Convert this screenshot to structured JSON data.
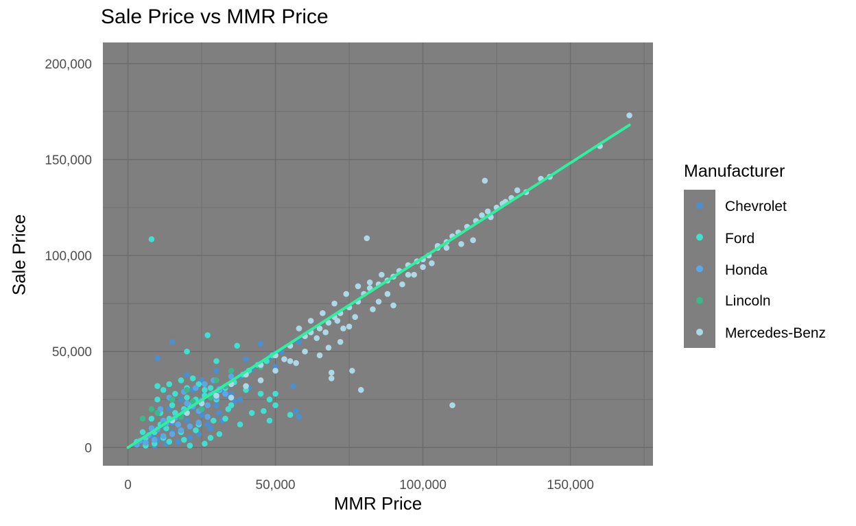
{
  "chart_data": {
    "type": "scatter",
    "title": "Sale Price vs MMR Price",
    "xlabel": "MMR Price",
    "ylabel": "Sale Price",
    "xlim": [
      -8500,
      178000
    ],
    "ylim": [
      -9500,
      211000
    ],
    "x_ticks": [
      0,
      50000,
      100000,
      150000
    ],
    "x_tick_labels": [
      "0",
      "50,000",
      "100,000",
      "150,000"
    ],
    "y_ticks": [
      0,
      50000,
      100000,
      150000,
      200000
    ],
    "y_tick_labels": [
      "0",
      "50,000",
      "100,000",
      "150,000",
      "200,000"
    ],
    "grid": true,
    "panel_background": "#7f7f7f",
    "grid_color": "#6b6b6b",
    "legend": {
      "title": "Manufacturer",
      "placement": "right",
      "background": "#7f7f7f",
      "entries": [
        {
          "name": "Chevrolet",
          "color": "#4a90d0"
        },
        {
          "name": "Ford",
          "color": "#40e0d0"
        },
        {
          "name": "Honda",
          "color": "#5ba8e8"
        },
        {
          "name": "Lincoln",
          "color": "#3cb88a"
        },
        {
          "name": "Mercedes-Benz",
          "color": "#add8e6"
        }
      ]
    },
    "trend_line": {
      "color": "#2ef0a0",
      "x": [
        0,
        170000
      ],
      "y": [
        0,
        168000
      ]
    },
    "series": [
      {
        "name": "Chevrolet",
        "points": [
          [
            5000,
            4000
          ],
          [
            8000,
            6000
          ],
          [
            12000,
            11000
          ],
          [
            15000,
            13000
          ],
          [
            18000,
            17000
          ],
          [
            20000,
            19000
          ],
          [
            22000,
            21000
          ],
          [
            25000,
            24000
          ],
          [
            28000,
            26000
          ],
          [
            30000,
            29000
          ],
          [
            32000,
            30000
          ],
          [
            35000,
            33000
          ],
          [
            38000,
            37000
          ],
          [
            40000,
            39000
          ],
          [
            42000,
            41000
          ],
          [
            45000,
            44000
          ],
          [
            48000,
            47000
          ],
          [
            50000,
            49000
          ],
          [
            52000,
            50000
          ],
          [
            55000,
            53000
          ],
          [
            58000,
            55000
          ],
          [
            60000,
            58000
          ],
          [
            62000,
            60000
          ],
          [
            10000,
            4000
          ],
          [
            15000,
            8000
          ],
          [
            20000,
            14000
          ],
          [
            25000,
            17000
          ],
          [
            30000,
            22000
          ],
          [
            35000,
            28000
          ],
          [
            28000,
            10000
          ],
          [
            32000,
            14000
          ],
          [
            38000,
            25000
          ],
          [
            45000,
            35000
          ],
          [
            50000,
            42000
          ],
          [
            57000,
            19000
          ],
          [
            58000,
            16000
          ],
          [
            56000,
            32000
          ],
          [
            10000,
            46500
          ],
          [
            15000,
            55000
          ],
          [
            20000,
            38000
          ],
          [
            25000,
            35000
          ],
          [
            30000,
            40000
          ],
          [
            40000,
            46000
          ],
          [
            45000,
            54000
          ],
          [
            18000,
            25000
          ],
          [
            22000,
            30000
          ],
          [
            14000,
            20000
          ],
          [
            26000,
            28000
          ],
          [
            34000,
            27000
          ],
          [
            3000,
            2000
          ],
          [
            6000,
            3000
          ],
          [
            9000,
            1000
          ],
          [
            13000,
            2000
          ],
          [
            17000,
            3000
          ],
          [
            21000,
            5000
          ],
          [
            24000,
            7000
          ],
          [
            27000,
            12000
          ],
          [
            31000,
            18000
          ],
          [
            36000,
            24000
          ],
          [
            41000,
            31000
          ]
        ]
      },
      {
        "name": "Ford",
        "points": [
          [
            3000,
            3000
          ],
          [
            6000,
            5000
          ],
          [
            9000,
            8000
          ],
          [
            11000,
            12000
          ],
          [
            14000,
            15000
          ],
          [
            16000,
            18000
          ],
          [
            19000,
            20000
          ],
          [
            21000,
            22000
          ],
          [
            23000,
            25000
          ],
          [
            26000,
            27000
          ],
          [
            29000,
            28000
          ],
          [
            31000,
            30000
          ],
          [
            33000,
            31000
          ],
          [
            36000,
            34000
          ],
          [
            39000,
            38000
          ],
          [
            41000,
            40000
          ],
          [
            44000,
            43000
          ],
          [
            47000,
            45000
          ],
          [
            49000,
            48000
          ],
          [
            8000,
            108500
          ],
          [
            10000,
            32000
          ],
          [
            12000,
            30000
          ],
          [
            14000,
            33000
          ],
          [
            16000,
            28000
          ],
          [
            18000,
            35000
          ],
          [
            20000,
            31000
          ],
          [
            22000,
            36000
          ],
          [
            24000,
            33000
          ],
          [
            26000,
            30000
          ],
          [
            28000,
            31000
          ],
          [
            10000,
            25000
          ],
          [
            15000,
            22000
          ],
          [
            20000,
            26000
          ],
          [
            25000,
            20000
          ],
          [
            30000,
            25000
          ],
          [
            35000,
            22000
          ],
          [
            40000,
            30000
          ],
          [
            45000,
            28000
          ],
          [
            48000,
            25000
          ],
          [
            50000,
            28000
          ],
          [
            46000,
            19000
          ],
          [
            48000,
            14000
          ],
          [
            50000,
            22000
          ],
          [
            55000,
            17000
          ],
          [
            27000,
            58500
          ],
          [
            37000,
            53000
          ],
          [
            20000,
            50000
          ],
          [
            30000,
            45000
          ],
          [
            12000,
            5000
          ],
          [
            18000,
            8000
          ],
          [
            24000,
            12000
          ],
          [
            28000,
            5000
          ],
          [
            33000,
            15000
          ],
          [
            38000,
            12000
          ],
          [
            42000,
            18000
          ],
          [
            5000,
            8000
          ],
          [
            8000,
            15000
          ],
          [
            11000,
            18000
          ],
          [
            13000,
            10000
          ],
          [
            17000,
            12000
          ],
          [
            31000,
            7000
          ],
          [
            26000,
            2000
          ],
          [
            6000,
            1000
          ],
          [
            9000,
            2000
          ],
          [
            14000,
            3000
          ],
          [
            19000,
            4000
          ],
          [
            21000,
            1000
          ],
          [
            23000,
            9000
          ],
          [
            29000,
            14000
          ],
          [
            34000,
            20000
          ]
        ]
      },
      {
        "name": "Honda",
        "points": [
          [
            4000,
            3500
          ],
          [
            7000,
            6500
          ],
          [
            10000,
            9500
          ],
          [
            13000,
            12500
          ],
          [
            16000,
            15500
          ],
          [
            19000,
            18500
          ],
          [
            22000,
            21500
          ],
          [
            25000,
            24500
          ],
          [
            28000,
            27500
          ],
          [
            31000,
            30500
          ],
          [
            8000,
            10000
          ],
          [
            12000,
            14000
          ],
          [
            17000,
            12000
          ],
          [
            20000,
            23000
          ],
          [
            24000,
            19000
          ],
          [
            27000,
            22000
          ],
          [
            30000,
            26000
          ],
          [
            33000,
            28000
          ],
          [
            3000,
            1500
          ],
          [
            6000,
            2500
          ],
          [
            9000,
            4000
          ],
          [
            12000,
            6000
          ],
          [
            15000,
            7000
          ],
          [
            18000,
            9000
          ],
          [
            21000,
            11000
          ],
          [
            24000,
            13000
          ],
          [
            27000,
            16000
          ],
          [
            11000,
            20000
          ],
          [
            14000,
            26000
          ],
          [
            19000,
            29000
          ],
          [
            23000,
            31000
          ],
          [
            26000,
            33000
          ],
          [
            29000,
            35000
          ],
          [
            35000,
            37000
          ]
        ]
      },
      {
        "name": "Lincoln",
        "points": [
          [
            5000,
            15000
          ],
          [
            8000,
            20000
          ],
          [
            10000,
            18000
          ],
          [
            15000,
            25000
          ],
          [
            20000,
            30000
          ],
          [
            25000,
            20000
          ],
          [
            30000,
            35000
          ],
          [
            35000,
            40000
          ],
          [
            40000,
            38000
          ],
          [
            45000,
            42000
          ],
          [
            12000,
            12000
          ],
          [
            18000,
            16000
          ],
          [
            22000,
            24000
          ],
          [
            28000,
            26000
          ],
          [
            33000,
            32000
          ]
        ]
      },
      {
        "name": "Mercedes-Benz",
        "points": [
          [
            15000,
            14000
          ],
          [
            20000,
            18000
          ],
          [
            25000,
            23000
          ],
          [
            30000,
            27000
          ],
          [
            35000,
            33000
          ],
          [
            40000,
            38000
          ],
          [
            45000,
            43000
          ],
          [
            50000,
            48000
          ],
          [
            55000,
            53000
          ],
          [
            60000,
            58000
          ],
          [
            62000,
            60000
          ],
          [
            65000,
            62000
          ],
          [
            68000,
            65000
          ],
          [
            70000,
            68000
          ],
          [
            72000,
            70000
          ],
          [
            75000,
            73000
          ],
          [
            78000,
            76000
          ],
          [
            80000,
            80000
          ],
          [
            82000,
            83000
          ],
          [
            85000,
            85000
          ],
          [
            88000,
            87000
          ],
          [
            90000,
            89000
          ],
          [
            92000,
            92000
          ],
          [
            95000,
            95000
          ],
          [
            98000,
            97000
          ],
          [
            100000,
            98000
          ],
          [
            102000,
            100000
          ],
          [
            105000,
            104000
          ],
          [
            108000,
            107000
          ],
          [
            110000,
            110000
          ],
          [
            112000,
            112000
          ],
          [
            115000,
            115000
          ],
          [
            118000,
            118000
          ],
          [
            120000,
            121000
          ],
          [
            122000,
            123000
          ],
          [
            125000,
            125000
          ],
          [
            128000,
            128000
          ],
          [
            130000,
            130000
          ],
          [
            132000,
            134000
          ],
          [
            135000,
            133000
          ],
          [
            140000,
            140000
          ],
          [
            143000,
            141000
          ],
          [
            160000,
            157000
          ],
          [
            170000,
            173000
          ],
          [
            121000,
            139000
          ],
          [
            81000,
            109000
          ],
          [
            110000,
            22000
          ],
          [
            69000,
            39000
          ],
          [
            69000,
            36000
          ],
          [
            79000,
            30000
          ],
          [
            76000,
            40000
          ],
          [
            85000,
            76000
          ],
          [
            90000,
            74000
          ],
          [
            95000,
            90000
          ],
          [
            100000,
            94000
          ],
          [
            105000,
            105000
          ],
          [
            108000,
            104000
          ],
          [
            113000,
            106000
          ],
          [
            117000,
            108000
          ],
          [
            123000,
            120000
          ],
          [
            127000,
            127000
          ],
          [
            75000,
            63000
          ],
          [
            72000,
            55000
          ],
          [
            68000,
            52000
          ],
          [
            65000,
            48000
          ],
          [
            60000,
            50000
          ],
          [
            55000,
            45000
          ],
          [
            58000,
            62000
          ],
          [
            62000,
            66000
          ],
          [
            66000,
            70000
          ],
          [
            70000,
            75000
          ],
          [
            74000,
            80000
          ],
          [
            78000,
            84000
          ],
          [
            82000,
            86000
          ],
          [
            86000,
            90000
          ],
          [
            64000,
            57000
          ],
          [
            67000,
            60000
          ],
          [
            71000,
            66000
          ],
          [
            73000,
            62000
          ],
          [
            77000,
            68000
          ],
          [
            83000,
            72000
          ],
          [
            88000,
            80000
          ],
          [
            93000,
            85000
          ],
          [
            97000,
            90000
          ],
          [
            103000,
            96000
          ],
          [
            45000,
            35000
          ],
          [
            40000,
            32000
          ],
          [
            35000,
            26000
          ],
          [
            50000,
            40000
          ],
          [
            53000,
            46000
          ],
          [
            57000,
            44000
          ]
        ]
      }
    ]
  }
}
